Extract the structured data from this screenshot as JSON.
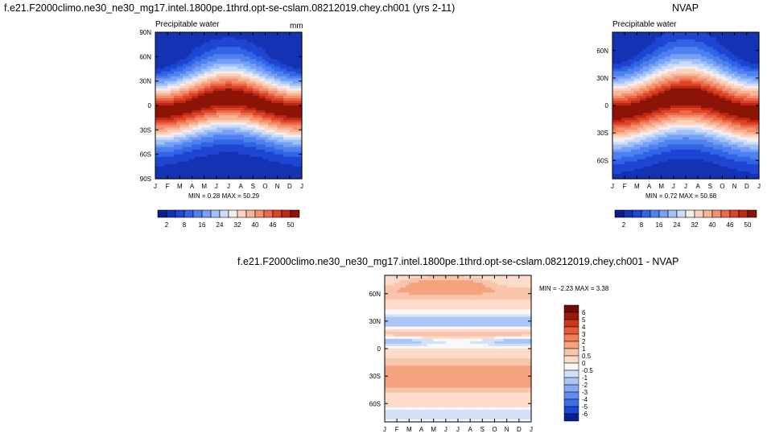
{
  "chart_data": [
    {
      "type": "heatmap",
      "title": "f.e21.F2000climo.ne30_ne30_mg17.intel.1800pe.1thrd.opt-se-cslam.08212019.chey.ch001 (yrs 2-11)",
      "field_label": "Precipitable water",
      "units": "mm",
      "x": [
        "J",
        "F",
        "M",
        "A",
        "M",
        "J",
        "J",
        "A",
        "S",
        "O",
        "N",
        "D",
        "J"
      ],
      "y_ticks": [
        "90N",
        "60N",
        "30N",
        "0",
        "30S",
        "60S",
        "90S"
      ],
      "y_range": [
        -90,
        90
      ],
      "min_label": "MIN =",
      "min": "0.28",
      "max_label": "MAX =",
      "max": "50.29",
      "colorbar_levels": [
        0,
        2,
        5,
        8,
        12,
        16,
        20,
        24,
        28,
        32,
        36,
        40,
        43,
        46,
        48,
        50
      ],
      "colorbar_tick_labels": [
        "2",
        "8",
        "16",
        "24",
        "32",
        "40",
        "46",
        "50"
      ],
      "peak": 50,
      "peak_lat": 8,
      "peak_season": "August"
    },
    {
      "type": "heatmap",
      "title": "NVAP",
      "field_label": "Precipitable water",
      "x": [
        "J",
        "F",
        "M",
        "A",
        "M",
        "J",
        "J",
        "A",
        "S",
        "O",
        "N",
        "D",
        "J"
      ],
      "y_ticks": [
        "60N",
        "30N",
        "0",
        "30S",
        "60S"
      ],
      "y_range": [
        -80,
        80
      ],
      "min_label": "MIN =",
      "min": "0.72",
      "max_label": "MAX =",
      "max": "50.68",
      "colorbar_levels": [
        0,
        2,
        5,
        8,
        12,
        16,
        20,
        24,
        28,
        32,
        36,
        40,
        43,
        46,
        48,
        50
      ],
      "colorbar_tick_labels": [
        "2",
        "8",
        "16",
        "24",
        "32",
        "40",
        "46",
        "50"
      ],
      "peak": 50,
      "peak_lat": 8,
      "peak_season": "August"
    },
    {
      "type": "heatmap",
      "title": "f.e21.F2000climo.ne30_ne30_mg17.intel.1800pe.1thrd.opt-se-cslam.08212019.chey.ch001 - NVAP",
      "x": [
        "J",
        "F",
        "M",
        "A",
        "M",
        "J",
        "J",
        "A",
        "S",
        "O",
        "N",
        "D",
        "J"
      ],
      "y_ticks": [
        "60N",
        "30N",
        "0",
        "30S",
        "60S"
      ],
      "y_range": [
        -80,
        80
      ],
      "min_label": "MIN =",
      "min": "-2.23",
      "max_label": "MAX =",
      "max": "3.38",
      "colorbar_levels": [
        -6,
        -5,
        -4,
        -3,
        -2,
        -1,
        -0.5,
        0,
        0.5,
        1,
        2,
        3,
        4,
        5,
        6
      ],
      "colorbar_tick_labels": [
        "-6",
        "-5",
        "-4",
        "-3",
        "-2",
        "-1",
        "-0.5",
        "0",
        "0.5",
        "1",
        "2",
        "3",
        "4",
        "5",
        "6"
      ]
    }
  ],
  "colors": {
    "seq": [
      "#0a1e8c",
      "#1432b4",
      "#1e46d2",
      "#3264e6",
      "#4f82f0",
      "#75a0f5",
      "#a0c0f8",
      "#cddcf8",
      "#f5ecec",
      "#fad2be",
      "#f8b496",
      "#f5906e",
      "#ec6a4a",
      "#dc4428",
      "#be2814",
      "#8c1406"
    ],
    "div": [
      "#0a1e8c",
      "#1e46d2",
      "#3c6ee6",
      "#5f8ef0",
      "#84aaf2",
      "#aac6f5",
      "#d2e0f8",
      "#f8f8f8",
      "#fcdcc8",
      "#f8c4aa",
      "#f5a27e",
      "#f07e58",
      "#e45a36",
      "#cc3618",
      "#9c1808",
      "#6e0a04"
    ]
  }
}
